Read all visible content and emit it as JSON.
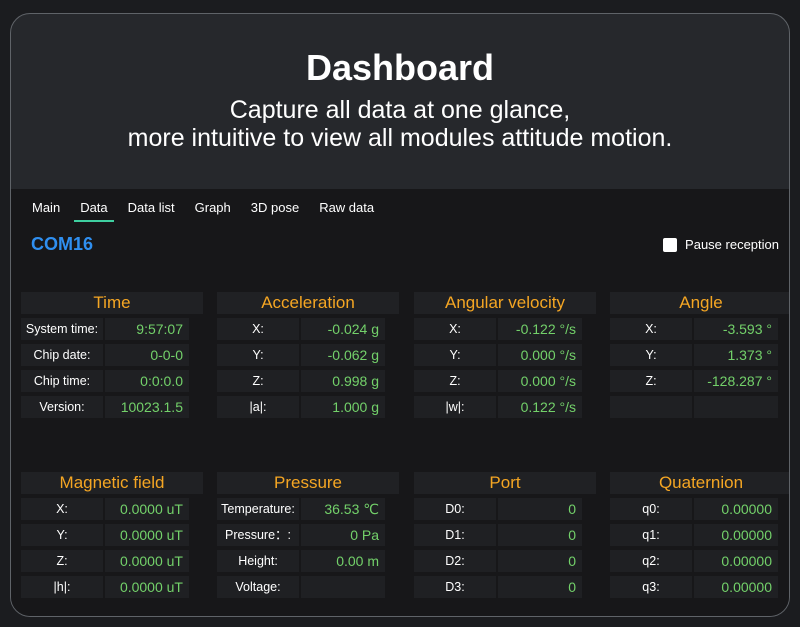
{
  "hero": {
    "title": "Dashboard",
    "subtitle_line1": "Capture all data at one glance,",
    "subtitle_line2": "more intuitive to view all modules attitude motion."
  },
  "tabs": [
    "Main",
    "Data",
    "Data list",
    "Graph",
    "3D pose",
    "Raw data"
  ],
  "active_tab": "Data",
  "port_name": "COM16",
  "pause_label": "Pause reception",
  "pause_checked": false,
  "colors": {
    "accent_title": "#f5a623",
    "value": "#73d16a",
    "port": "#2f8ff0",
    "tab_underline": "#3ecfa0"
  },
  "cards": [
    {
      "title": "Time",
      "rows": [
        {
          "label": "System time:",
          "value": "9:57:07"
        },
        {
          "label": "Chip date:",
          "value": "0-0-0"
        },
        {
          "label": "Chip time:",
          "value": "0:0:0.0"
        },
        {
          "label": "Version:",
          "value": "10023.1.5"
        }
      ]
    },
    {
      "title": "Acceleration",
      "rows": [
        {
          "label": "X:",
          "value": "-0.024 g"
        },
        {
          "label": "Y:",
          "value": "-0.062 g"
        },
        {
          "label": "Z:",
          "value": "0.998 g"
        },
        {
          "label": "|a|:",
          "value": "1.000 g"
        }
      ]
    },
    {
      "title": "Angular velocity",
      "rows": [
        {
          "label": "X:",
          "value": "-0.122 °/s"
        },
        {
          "label": "Y:",
          "value": "0.000 °/s"
        },
        {
          "label": "Z:",
          "value": "0.000 °/s"
        },
        {
          "label": "|w|:",
          "value": "0.122 °/s"
        }
      ]
    },
    {
      "title": "Angle",
      "rows": [
        {
          "label": "X:",
          "value": "-3.593 °"
        },
        {
          "label": "Y:",
          "value": "1.373 °"
        },
        {
          "label": "Z:",
          "value": "-128.287 °"
        },
        {
          "label": "",
          "value": ""
        }
      ]
    },
    {
      "title": "Magnetic field",
      "rows": [
        {
          "label": "X:",
          "value": "0.0000 uT"
        },
        {
          "label": "Y:",
          "value": "0.0000 uT"
        },
        {
          "label": "Z:",
          "value": "0.0000 uT"
        },
        {
          "label": "|h|:",
          "value": "0.0000 uT"
        }
      ]
    },
    {
      "title": "Pressure",
      "rows": [
        {
          "label": "Temperature:",
          "value": "36.53 ℃"
        },
        {
          "label": "Pressure：:",
          "value": "0 Pa"
        },
        {
          "label": "Height:",
          "value": "0.00 m"
        },
        {
          "label": "Voltage:",
          "value": ""
        }
      ]
    },
    {
      "title": "Port",
      "rows": [
        {
          "label": "D0:",
          "value": "0"
        },
        {
          "label": "D1:",
          "value": "0"
        },
        {
          "label": "D2:",
          "value": "0"
        },
        {
          "label": "D3:",
          "value": "0"
        }
      ]
    },
    {
      "title": "Quaternion",
      "rows": [
        {
          "label": "q0:",
          "value": "0.00000"
        },
        {
          "label": "q1:",
          "value": "0.00000"
        },
        {
          "label": "q2:",
          "value": "0.00000"
        },
        {
          "label": "q3:",
          "value": "0.00000"
        }
      ]
    }
  ]
}
